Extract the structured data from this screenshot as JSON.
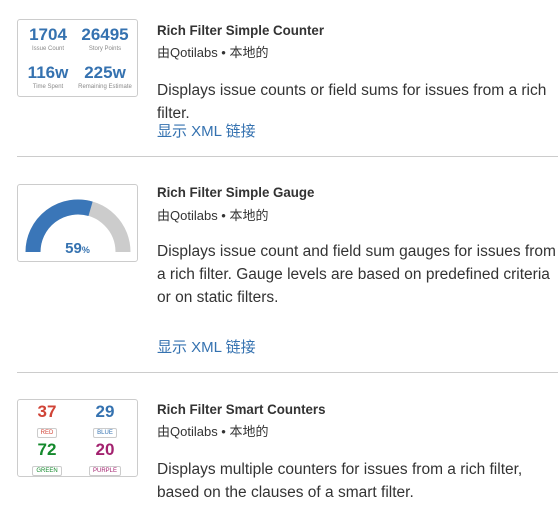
{
  "gadgets": [
    {
      "title": "Rich Filter Simple Counter",
      "author": "由Qotilabs • 本地的",
      "description": "Displays issue counts or field sums for issues from a rich filter.",
      "xml_link": "显示 XML 链接",
      "thumbnail": {
        "counters": [
          {
            "value": "1704",
            "label": "Issue Count"
          },
          {
            "value": "26495",
            "label": "Story Points"
          },
          {
            "value": "116w",
            "label": "Time Spent"
          },
          {
            "value": "225w",
            "label": "Remaining Estimate"
          }
        ]
      }
    },
    {
      "title": "Rich Filter Simple Gauge",
      "author": "由Qotilabs • 本地的",
      "description": "Displays issue count and field sum gauges for issues from a rich filter. Gauge levels are based on predefined criteria or on static filters.",
      "xml_link": "显示 XML 链接",
      "thumbnail": {
        "gauge_value": "59",
        "gauge_unit": "%",
        "gauge_fraction": 0.59,
        "fill_color": "#3a76b8",
        "track_color": "#cccccc"
      }
    },
    {
      "title": "Rich Filter Smart Counters",
      "author": "由Qotilabs • 本地的",
      "description": "Displays multiple counters for issues from a rich filter, based on the clauses of a smart filter.",
      "thumbnail": {
        "counters": [
          {
            "value": "37",
            "label": "RED",
            "color": "#d04437"
          },
          {
            "value": "29",
            "label": "BLUE",
            "color": "#3572b0"
          },
          {
            "value": "72",
            "label": "GREEN",
            "color": "#14892c"
          },
          {
            "value": "20",
            "label": "PURPLE",
            "color": "#a3226f"
          }
        ]
      }
    }
  ]
}
